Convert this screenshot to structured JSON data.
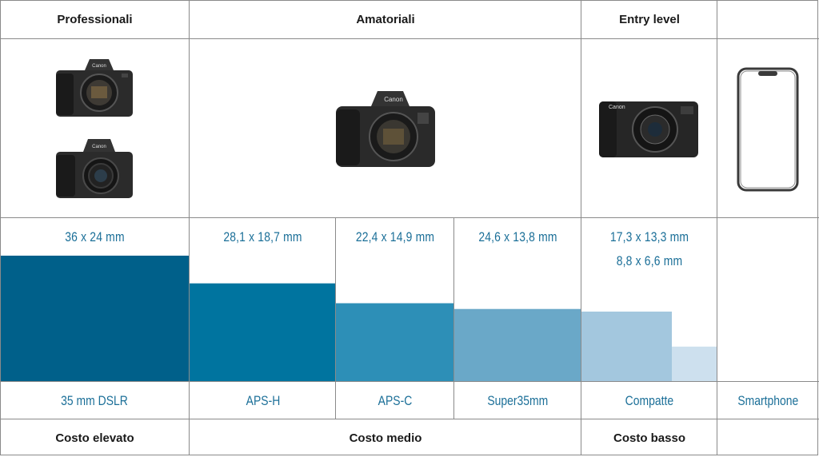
{
  "header": {
    "professionali": "Professionali",
    "amatoriali": "Amatoriali",
    "entry_level": "Entry level"
  },
  "images": {
    "camera_brand": "Canon"
  },
  "colors": {
    "dslr": "#00608a",
    "aps_h": "#00749f",
    "aps_c": "#2d8fb7",
    "super35": "#6aa8c8",
    "compatte_1": "#a3c7de",
    "compatte_2": "#cde0ee",
    "text_blue": "#1b6f98",
    "grid": "#8a8a8a"
  },
  "chart_data": {
    "type": "bar",
    "sensors": [
      {
        "category": "35 mm DSLR",
        "size": "36 x 24 mm",
        "height_mm": 24
      },
      {
        "category": "APS-H",
        "size": "28,1 x 18,7 mm",
        "height_mm": 18.7
      },
      {
        "category": "APS-C",
        "size": "22,4 x 14,9 mm",
        "height_mm": 14.9
      },
      {
        "category": "Super35mm",
        "size": "24,6 x 13,8 mm",
        "height_mm": 13.8
      },
      {
        "category": "Compatte",
        "size": "17,3 x 13,3 mm",
        "height_mm": 13.3
      },
      {
        "category": "Compatte",
        "size": "8,8 x 6,6 mm",
        "height_mm": 6.6
      },
      {
        "category": "Smartphone",
        "size": "",
        "height_mm": 0
      }
    ],
    "size_labels": {
      "dslr": "36 x 24 mm",
      "aps_h": "28,1 x 18,7 mm",
      "aps_c": "22,4 x 14,9 mm",
      "super35": "24,6 x 13,8 mm",
      "compatte_1": "17,3 x 13,3 mm",
      "compatte_2": "8,8 x 6,6 mm"
    },
    "categories": {
      "dslr": "35 mm DSLR",
      "aps_h": "APS-H",
      "aps_c": "APS-C",
      "super35": "Super35mm",
      "compatte": "Compatte",
      "smartphone": "Smartphone"
    }
  },
  "footer": {
    "costo_elevato": "Costo elevato",
    "costo_medio": "Costo medio",
    "costo_basso": "Costo basso"
  }
}
